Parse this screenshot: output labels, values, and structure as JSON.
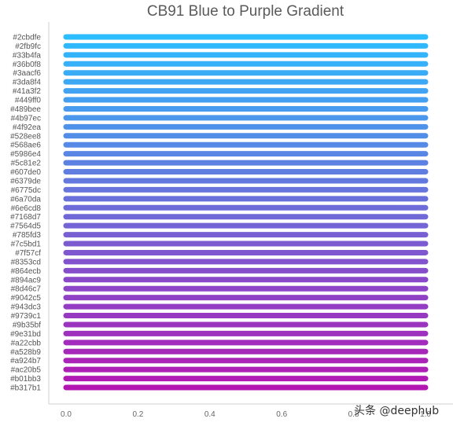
{
  "watermark": "头条 @deephub",
  "chart_data": {
    "type": "bar",
    "orientation": "horizontal",
    "title": "CB91 Blue to Purple Gradient",
    "xlabel": "",
    "ylabel": "",
    "xlim": [
      0,
      1
    ],
    "xticks": [
      "0.0",
      "0.2",
      "0.4",
      "0.6",
      "0.8",
      "1.0"
    ],
    "xtick_values": [
      0,
      0.2,
      0.4,
      0.6,
      0.8,
      1.0
    ],
    "grid": false,
    "categories": [
      "#2cbdfe",
      "#2fb9fc",
      "#33b4fa",
      "#36b0f8",
      "#3aacf6",
      "#3da8f4",
      "#41a3f2",
      "#449ff0",
      "#489bee",
      "#4b97ec",
      "#4f92ea",
      "#528ee8",
      "#568ae6",
      "#5986e4",
      "#5c81e2",
      "#607de0",
      "#6379de",
      "#6775dc",
      "#6a70da",
      "#6e6cd8",
      "#7168d7",
      "#7564d5",
      "#785fd3",
      "#7c5bd1",
      "#7f57cf",
      "#8353cd",
      "#864ecb",
      "#894ac9",
      "#8d46c7",
      "#9042c5",
      "#943dc3",
      "#9739c1",
      "#9b35bf",
      "#9e31bd",
      "#a22cbb",
      "#a528b9",
      "#a924b7",
      "#ac20b5",
      "#b01bb3",
      "#b317b1"
    ],
    "values": [
      1,
      1,
      1,
      1,
      1,
      1,
      1,
      1,
      1,
      1,
      1,
      1,
      1,
      1,
      1,
      1,
      1,
      1,
      1,
      1,
      1,
      1,
      1,
      1,
      1,
      1,
      1,
      1,
      1,
      1,
      1,
      1,
      1,
      1,
      1,
      1,
      1,
      1,
      1,
      1
    ],
    "bar_colors": "same as category labels"
  }
}
